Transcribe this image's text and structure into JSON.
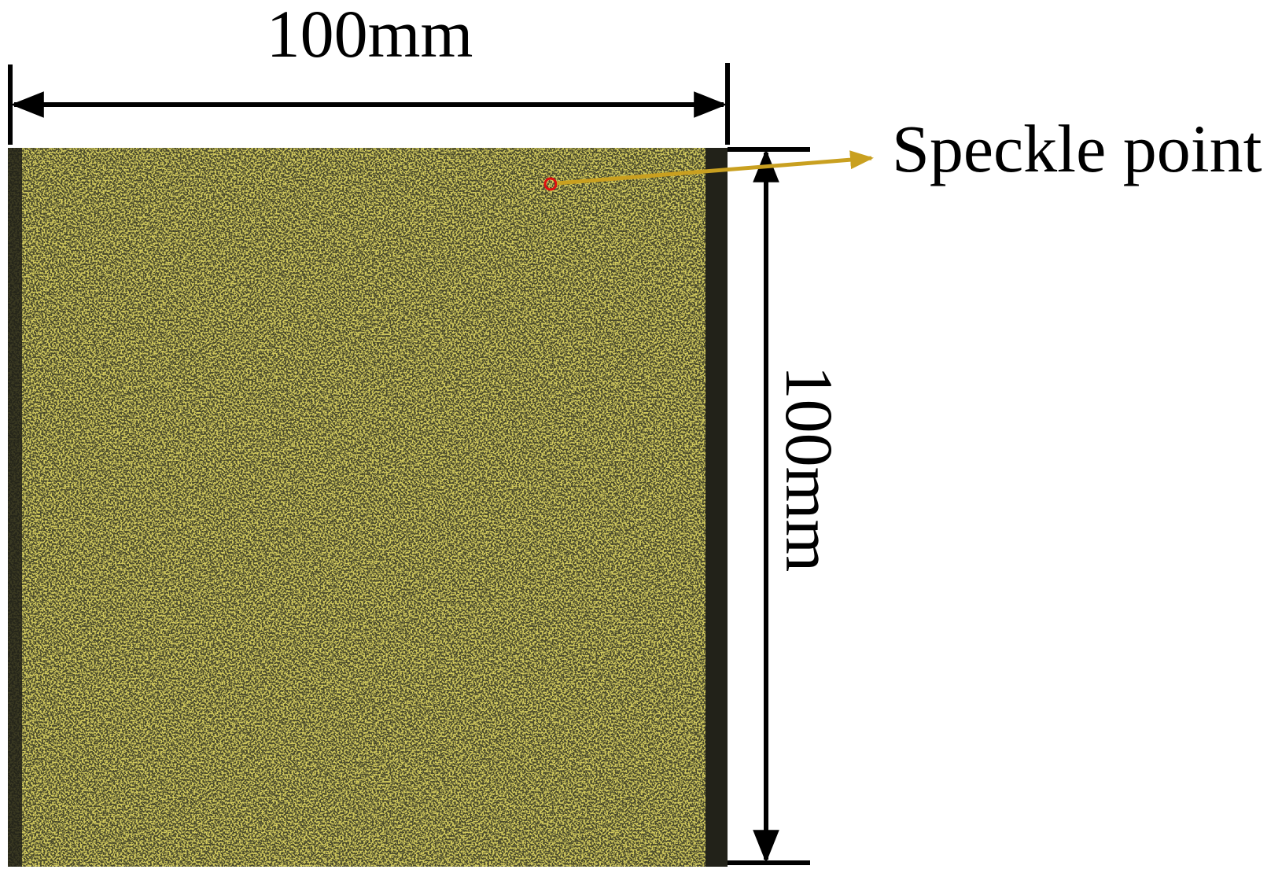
{
  "dimensions": {
    "width_label": "100mm",
    "height_label": "100mm"
  },
  "annotation": {
    "label": "Speckle point"
  }
}
